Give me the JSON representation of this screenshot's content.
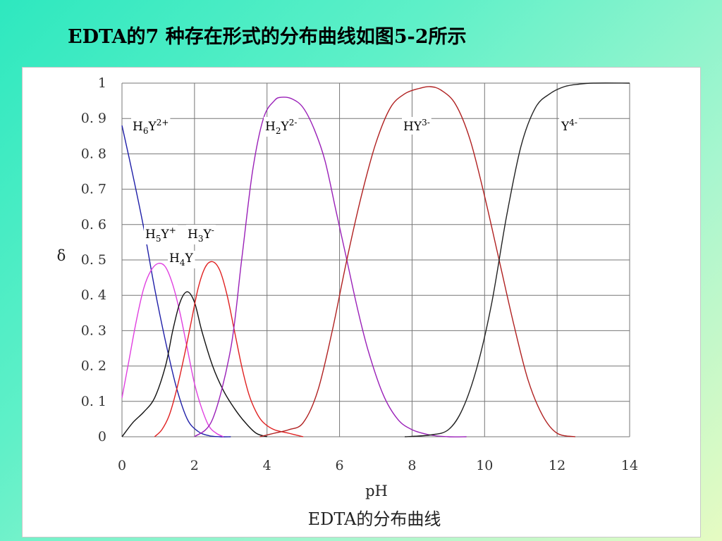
{
  "slide": {
    "title": "EDTA的7  种存在形式的分布曲线如图5-2所示"
  },
  "chart_data": {
    "type": "line",
    "title": "",
    "caption": "EDTA的分布曲线",
    "xlabel": "pH",
    "ylabel": "δ",
    "xlim": [
      0,
      14
    ],
    "ylim": [
      0,
      1
    ],
    "x_ticks": [
      "0",
      "2",
      "4",
      "6",
      "8",
      "10",
      "12",
      "14"
    ],
    "y_ticks": [
      "0",
      "0. 1",
      "0. 2",
      "0. 3",
      "0. 4",
      "0. 5",
      "0. 6",
      "0. 7",
      "0. 8",
      "0. 9",
      "1"
    ],
    "grid": true,
    "species_labels": [
      {
        "base": "H",
        "sub": "6",
        "tail": "Y",
        "sup": "2+"
      },
      {
        "base": "H",
        "sub": "2",
        "tail": "Y",
        "sup": "2-"
      },
      {
        "base": "",
        "sub": "",
        "tail": "HY",
        "sup": "3-"
      },
      {
        "base": "",
        "sub": "",
        "tail": "Y",
        "sup": "4-"
      },
      {
        "base": "H",
        "sub": "5",
        "tail": "Y",
        "sup": "+"
      },
      {
        "base": "H",
        "sub": "3",
        "tail": "Y",
        "sup": "-"
      },
      {
        "base": "H",
        "sub": "4",
        "tail": "Y",
        "sup": ""
      }
    ],
    "series": [
      {
        "color": "#1f1fa8",
        "x": [
          0,
          0.3,
          0.6,
          0.9,
          1.2,
          1.5,
          1.8,
          2.1,
          2.4,
          2.7,
          3.0
        ],
        "y": [
          0.88,
          0.74,
          0.59,
          0.42,
          0.27,
          0.14,
          0.05,
          0.015,
          0.003,
          0,
          0
        ]
      },
      {
        "color": "#e040e0",
        "x": [
          0,
          0.2,
          0.4,
          0.6,
          0.8,
          1.0,
          1.2,
          1.4,
          1.6,
          1.8,
          2.0,
          2.2,
          2.4,
          2.6,
          2.8
        ],
        "y": [
          0.11,
          0.22,
          0.33,
          0.42,
          0.47,
          0.49,
          0.48,
          0.43,
          0.35,
          0.25,
          0.15,
          0.08,
          0.03,
          0.01,
          0
        ]
      },
      {
        "color": "#111111",
        "x": [
          0,
          0.3,
          0.6,
          0.9,
          1.2,
          1.4,
          1.6,
          1.8,
          2.0,
          2.2,
          2.5,
          2.8,
          3.1,
          3.4,
          3.7,
          4.0
        ],
        "y": [
          0,
          0.04,
          0.07,
          0.11,
          0.2,
          0.3,
          0.38,
          0.41,
          0.38,
          0.3,
          0.2,
          0.13,
          0.08,
          0.04,
          0.01,
          0
        ]
      },
      {
        "color": "#e02020",
        "x": [
          0.9,
          1.1,
          1.3,
          1.5,
          1.7,
          1.9,
          2.1,
          2.3,
          2.5,
          2.7,
          2.9,
          3.1,
          3.3,
          3.5,
          3.7,
          3.9,
          4.2,
          4.6,
          5.0
        ],
        "y": [
          0,
          0.02,
          0.06,
          0.13,
          0.22,
          0.32,
          0.42,
          0.48,
          0.495,
          0.47,
          0.4,
          0.3,
          0.2,
          0.12,
          0.07,
          0.04,
          0.02,
          0.01,
          0
        ]
      },
      {
        "color": "#9a20b8",
        "x": [
          2.0,
          2.5,
          3.0,
          3.3,
          3.6,
          3.9,
          4.2,
          4.4,
          4.7,
          5.0,
          5.3,
          5.6,
          5.9,
          6.2,
          6.5,
          6.8,
          7.2,
          7.6,
          8.0,
          8.5,
          9.0,
          9.5
        ],
        "y": [
          0,
          0.05,
          0.25,
          0.5,
          0.75,
          0.9,
          0.95,
          0.96,
          0.955,
          0.93,
          0.87,
          0.78,
          0.64,
          0.5,
          0.36,
          0.24,
          0.12,
          0.05,
          0.02,
          0.005,
          0,
          0
        ]
      },
      {
        "color": "#b02020",
        "x": [
          3.8,
          4.2,
          4.6,
          5.0,
          5.4,
          5.8,
          6.2,
          6.6,
          7.0,
          7.4,
          7.8,
          8.2,
          8.5,
          8.8,
          9.2,
          9.6,
          10.0,
          10.4,
          10.8,
          11.2,
          11.6,
          12.0,
          12.5
        ],
        "y": [
          0,
          0.01,
          0.02,
          0.04,
          0.13,
          0.3,
          0.5,
          0.68,
          0.83,
          0.93,
          0.97,
          0.985,
          0.99,
          0.98,
          0.94,
          0.84,
          0.68,
          0.5,
          0.32,
          0.16,
          0.06,
          0.01,
          0
        ]
      },
      {
        "color": "#222222",
        "x": [
          7.8,
          8.5,
          9.0,
          9.4,
          9.8,
          10.2,
          10.6,
          11.0,
          11.4,
          11.8,
          12.2,
          12.6,
          13.0,
          14.0
        ],
        "y": [
          0,
          0.005,
          0.02,
          0.08,
          0.2,
          0.38,
          0.62,
          0.82,
          0.93,
          0.97,
          0.99,
          0.997,
          1.0,
          1.0
        ]
      }
    ]
  }
}
